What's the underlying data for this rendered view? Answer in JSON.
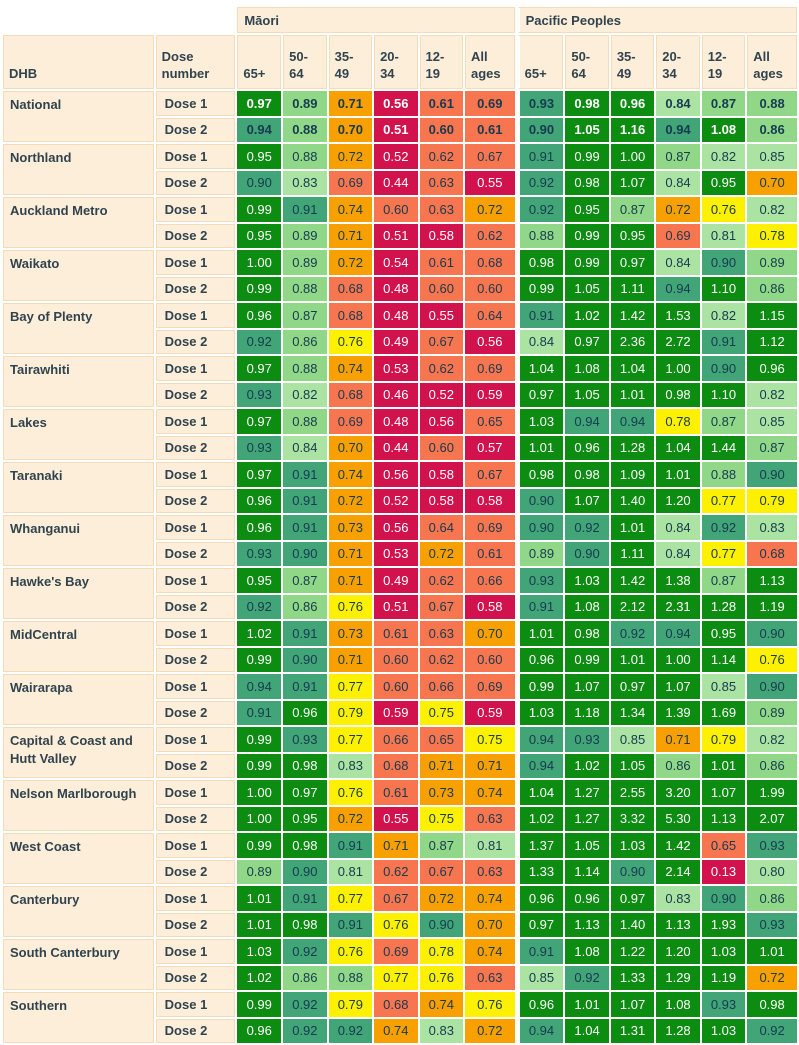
{
  "page": {
    "background": "#ffffff",
    "panel_fill": "#fdeeda",
    "panel_border": "#f3dcbb",
    "header_text_color": "#31434e",
    "value_text_dark": "#173a50",
    "value_text_light": "#ffffff"
  },
  "chart_data": {
    "type": "heatmap",
    "column_groups": [
      "Māori",
      "Pacific Peoples"
    ],
    "age_bands": [
      "65+",
      "50-64",
      "35-49",
      "20-34",
      "12-19",
      "All ages"
    ],
    "row_header_labels": {
      "dhb": "DHB",
      "dose": "Dose number"
    },
    "dose_labels": [
      "Dose 1",
      "Dose 2"
    ],
    "color_scale": [
      {
        "max": 0.595,
        "bg": "#d2124c",
        "fg": "#ffffff"
      },
      {
        "max": 0.695,
        "bg": "#f7764f",
        "fg": "#173a50"
      },
      {
        "max": 0.745,
        "bg": "#f8a000",
        "fg": "#173a50"
      },
      {
        "max": 0.795,
        "bg": "#fdf000",
        "fg": "#173a50"
      },
      {
        "max": 0.855,
        "bg": "#abe3a2",
        "fg": "#173a50"
      },
      {
        "max": 0.895,
        "bg": "#90d888",
        "fg": "#173a50"
      },
      {
        "max": 0.945,
        "bg": "#41a577",
        "fg": "#173a50"
      },
      {
        "max": 99,
        "bg": "#0d8c12",
        "fg": "#ffffff"
      }
    ],
    "rows": [
      {
        "dhb": "National",
        "bold": true,
        "doses": [
          {
            "label": "Dose 1",
            "maori": [
              "0.97",
              "0.89",
              "0.71",
              "0.56",
              "0.61",
              "0.69"
            ],
            "pacific": [
              "0.93",
              "0.98",
              "0.96",
              "0.84",
              "0.87",
              "0.88"
            ]
          },
          {
            "label": "Dose 2",
            "maori": [
              "0.94",
              "0.88",
              "0.70",
              "0.51",
              "0.60",
              "0.61"
            ],
            "pacific": [
              "0.90",
              "1.05",
              "1.16",
              "0.94",
              "1.08",
              "0.86"
            ]
          }
        ]
      },
      {
        "dhb": "Northland",
        "bold": false,
        "doses": [
          {
            "label": "Dose 1",
            "maori": [
              "0.95",
              "0.88",
              "0.72",
              "0.52",
              "0.62",
              "0.67"
            ],
            "pacific": [
              "0.91",
              "0.99",
              "1.00",
              "0.87",
              "0.82",
              "0.85"
            ]
          },
          {
            "label": "Dose 2",
            "maori": [
              "0.90",
              "0.83",
              "0.69",
              "0.44",
              "0.63",
              "0.55"
            ],
            "pacific": [
              "0.92",
              "0.98",
              "1.07",
              "0.84",
              "0.95",
              "0.70"
            ]
          }
        ]
      },
      {
        "dhb": "Auckland Metro",
        "bold": false,
        "doses": [
          {
            "label": "Dose 1",
            "maori": [
              "0.99",
              "0.91",
              "0.74",
              "0.60",
              "0.63",
              "0.72"
            ],
            "pacific": [
              "0.92",
              "0.95",
              "0.87",
              "0.72",
              "0.76",
              "0.82"
            ]
          },
          {
            "label": "Dose 2",
            "maori": [
              "0.95",
              "0.89",
              "0.71",
              "0.51",
              "0.58",
              "0.62"
            ],
            "pacific": [
              "0.88",
              "0.99",
              "0.95",
              "0.69",
              "0.81",
              "0.78"
            ]
          }
        ]
      },
      {
        "dhb": "Waikato",
        "bold": false,
        "doses": [
          {
            "label": "Dose 1",
            "maori": [
              "1.00",
              "0.89",
              "0.72",
              "0.54",
              "0.61",
              "0.68"
            ],
            "pacific": [
              "0.98",
              "0.99",
              "0.97",
              "0.84",
              "0.90",
              "0.89"
            ]
          },
          {
            "label": "Dose 2",
            "maori": [
              "0.99",
              "0.88",
              "0.68",
              "0.48",
              "0.60",
              "0.60"
            ],
            "pacific": [
              "0.99",
              "1.05",
              "1.11",
              "0.94",
              "1.10",
              "0.86"
            ]
          }
        ]
      },
      {
        "dhb": "Bay of Plenty",
        "bold": false,
        "doses": [
          {
            "label": "Dose 1",
            "maori": [
              "0.96",
              "0.87",
              "0.68",
              "0.48",
              "0.55",
              "0.64"
            ],
            "pacific": [
              "0.91",
              "1.02",
              "1.42",
              "1.53",
              "0.82",
              "1.15"
            ]
          },
          {
            "label": "Dose 2",
            "maori": [
              "0.92",
              "0.86",
              "0.76",
              "0.49",
              "0.67",
              "0.56"
            ],
            "pacific": [
              "0.84",
              "0.97",
              "2.36",
              "2.72",
              "0.91",
              "1.12"
            ]
          }
        ]
      },
      {
        "dhb": "Tairawhiti",
        "bold": false,
        "doses": [
          {
            "label": "Dose 1",
            "maori": [
              "0.97",
              "0.88",
              "0.74",
              "0.53",
              "0.62",
              "0.69"
            ],
            "pacific": [
              "1.04",
              "1.08",
              "1.04",
              "1.00",
              "0.90",
              "0.96"
            ]
          },
          {
            "label": "Dose 2",
            "maori": [
              "0.93",
              "0.82",
              "0.68",
              "0.46",
              "0.52",
              "0.59"
            ],
            "pacific": [
              "0.97",
              "1.05",
              "1.01",
              "0.98",
              "1.10",
              "0.82"
            ]
          }
        ]
      },
      {
        "dhb": "Lakes",
        "bold": false,
        "doses": [
          {
            "label": "Dose 1",
            "maori": [
              "0.97",
              "0.88",
              "0.69",
              "0.48",
              "0.56",
              "0.65"
            ],
            "pacific": [
              "1.03",
              "0.94",
              "0.94",
              "0.78",
              "0.87",
              "0.85"
            ]
          },
          {
            "label": "Dose 2",
            "maori": [
              "0.93",
              "0.84",
              "0.70",
              "0.44",
              "0.60",
              "0.57"
            ],
            "pacific": [
              "1.01",
              "0.96",
              "1.28",
              "1.04",
              "1.44",
              "0.87"
            ]
          }
        ]
      },
      {
        "dhb": "Taranaki",
        "bold": false,
        "doses": [
          {
            "label": "Dose 1",
            "maori": [
              "0.97",
              "0.91",
              "0.74",
              "0.56",
              "0.58",
              "0.67"
            ],
            "pacific": [
              "0.98",
              "0.98",
              "1.09",
              "1.01",
              "0.88",
              "0.90"
            ]
          },
          {
            "label": "Dose 2",
            "maori": [
              "0.96",
              "0.91",
              "0.72",
              "0.52",
              "0.58",
              "0.58"
            ],
            "pacific": [
              "0.90",
              "1.07",
              "1.40",
              "1.20",
              "0.77",
              "0.79"
            ]
          }
        ]
      },
      {
        "dhb": "Whanganui",
        "bold": false,
        "doses": [
          {
            "label": "Dose 1",
            "maori": [
              "0.96",
              "0.91",
              "0.73",
              "0.56",
              "0.64",
              "0.69"
            ],
            "pacific": [
              "0.90",
              "0.92",
              "1.01",
              "0.84",
              "0.92",
              "0.83"
            ]
          },
          {
            "label": "Dose 2",
            "maori": [
              "0.93",
              "0.90",
              "0.71",
              "0.53",
              "0.72",
              "0.61"
            ],
            "pacific": [
              "0.89",
              "0.90",
              "1.11",
              "0.84",
              "0.77",
              "0.68"
            ]
          }
        ]
      },
      {
        "dhb": "Hawke's Bay",
        "bold": false,
        "doses": [
          {
            "label": "Dose 1",
            "maori": [
              "0.95",
              "0.87",
              "0.71",
              "0.49",
              "0.62",
              "0.66"
            ],
            "pacific": [
              "0.93",
              "1.03",
              "1.42",
              "1.38",
              "0.87",
              "1.13"
            ]
          },
          {
            "label": "Dose 2",
            "maori": [
              "0.92",
              "0.86",
              "0.76",
              "0.51",
              "0.67",
              "0.58"
            ],
            "pacific": [
              "0.91",
              "1.08",
              "2.12",
              "2.31",
              "1.28",
              "1.19"
            ]
          }
        ]
      },
      {
        "dhb": "MidCentral",
        "bold": false,
        "doses": [
          {
            "label": "Dose 1",
            "maori": [
              "1.02",
              "0.91",
              "0.73",
              "0.61",
              "0.63",
              "0.70"
            ],
            "pacific": [
              "1.01",
              "0.98",
              "0.92",
              "0.94",
              "0.95",
              "0.90"
            ]
          },
          {
            "label": "Dose 2",
            "maori": [
              "0.99",
              "0.90",
              "0.71",
              "0.60",
              "0.62",
              "0.60"
            ],
            "pacific": [
              "0.96",
              "0.99",
              "1.01",
              "1.00",
              "1.14",
              "0.76"
            ]
          }
        ]
      },
      {
        "dhb": "Wairarapa",
        "bold": false,
        "doses": [
          {
            "label": "Dose 1",
            "maori": [
              "0.94",
              "0.91",
              "0.77",
              "0.60",
              "0.66",
              "0.69"
            ],
            "pacific": [
              "0.99",
              "1.07",
              "0.97",
              "1.07",
              "0.85",
              "0.90"
            ]
          },
          {
            "label": "Dose 2",
            "maori": [
              "0.91",
              "0.96",
              "0.79",
              "0.59",
              "0.75",
              "0.59"
            ],
            "pacific": [
              "1.03",
              "1.18",
              "1.34",
              "1.39",
              "1.69",
              "0.89"
            ]
          }
        ]
      },
      {
        "dhb": "Capital & Coast and Hutt Valley",
        "bold": false,
        "doses": [
          {
            "label": "Dose 1",
            "maori": [
              "0.99",
              "0.93",
              "0.77",
              "0.66",
              "0.65",
              "0.75"
            ],
            "pacific": [
              "0.94",
              "0.93",
              "0.85",
              "0.71",
              "0.79",
              "0.82"
            ]
          },
          {
            "label": "Dose 2",
            "maori": [
              "0.99",
              "0.98",
              "0.83",
              "0.68",
              "0.71",
              "0.71"
            ],
            "pacific": [
              "0.94",
              "1.02",
              "1.05",
              "0.86",
              "1.01",
              "0.86"
            ]
          }
        ]
      },
      {
        "dhb": "Nelson Marlborough",
        "bold": false,
        "doses": [
          {
            "label": "Dose 1",
            "maori": [
              "1.00",
              "0.97",
              "0.76",
              "0.61",
              "0.73",
              "0.74"
            ],
            "pacific": [
              "1.04",
              "1.27",
              "2.55",
              "3.20",
              "1.07",
              "1.99"
            ]
          },
          {
            "label": "Dose 2",
            "maori": [
              "1.00",
              "0.95",
              "0.72",
              "0.55",
              "0.75",
              "0.63"
            ],
            "pacific": [
              "1.02",
              "1.27",
              "3.32",
              "5.30",
              "1.13",
              "2.07"
            ]
          }
        ]
      },
      {
        "dhb": "West Coast",
        "bold": false,
        "doses": [
          {
            "label": "Dose 1",
            "maori": [
              "0.99",
              "0.98",
              "0.91",
              "0.71",
              "0.87",
              "0.81"
            ],
            "pacific": [
              "1.37",
              "1.05",
              "1.03",
              "1.42",
              "0.65",
              "0.93"
            ]
          },
          {
            "label": "Dose 2",
            "maori": [
              "0.89",
              "0.90",
              "0.81",
              "0.62",
              "0.67",
              "0.63"
            ],
            "pacific": [
              "1.33",
              "1.14",
              "0.90",
              "2.14",
              "0.13",
              "0.80"
            ]
          }
        ]
      },
      {
        "dhb": "Canterbury",
        "bold": false,
        "doses": [
          {
            "label": "Dose 1",
            "maori": [
              "1.01",
              "0.91",
              "0.77",
              "0.67",
              "0.72",
              "0.74"
            ],
            "pacific": [
              "0.96",
              "0.96",
              "0.97",
              "0.83",
              "0.90",
              "0.86"
            ]
          },
          {
            "label": "Dose 2",
            "maori": [
              "1.01",
              "0.98",
              "0.91",
              "0.76",
              "0.90",
              "0.70"
            ],
            "pacific": [
              "0.97",
              "1.13",
              "1.40",
              "1.13",
              "1.93",
              "0.93"
            ]
          }
        ]
      },
      {
        "dhb": "South Canterbury",
        "bold": false,
        "doses": [
          {
            "label": "Dose 1",
            "maori": [
              "1.03",
              "0.92",
              "0.76",
              "0.69",
              "0.78",
              "0.74"
            ],
            "pacific": [
              "0.91",
              "1.08",
              "1.22",
              "1.20",
              "1.03",
              "1.01"
            ]
          },
          {
            "label": "Dose 2",
            "maori": [
              "1.02",
              "0.86",
              "0.88",
              "0.77",
              "0.76",
              "0.63"
            ],
            "pacific": [
              "0.85",
              "0.92",
              "1.33",
              "1.29",
              "1.19",
              "0.72"
            ]
          }
        ]
      },
      {
        "dhb": "Southern",
        "bold": false,
        "doses": [
          {
            "label": "Dose 1",
            "maori": [
              "0.99",
              "0.92",
              "0.79",
              "0.68",
              "0.74",
              "0.76"
            ],
            "pacific": [
              "0.96",
              "1.01",
              "1.07",
              "1.08",
              "0.93",
              "0.98"
            ]
          },
          {
            "label": "Dose 2",
            "maori": [
              "0.96",
              "0.92",
              "0.92",
              "0.74",
              "0.83",
              "0.72"
            ],
            "pacific": [
              "0.94",
              "1.04",
              "1.31",
              "1.28",
              "1.03",
              "0.92"
            ]
          }
        ]
      }
    ]
  }
}
